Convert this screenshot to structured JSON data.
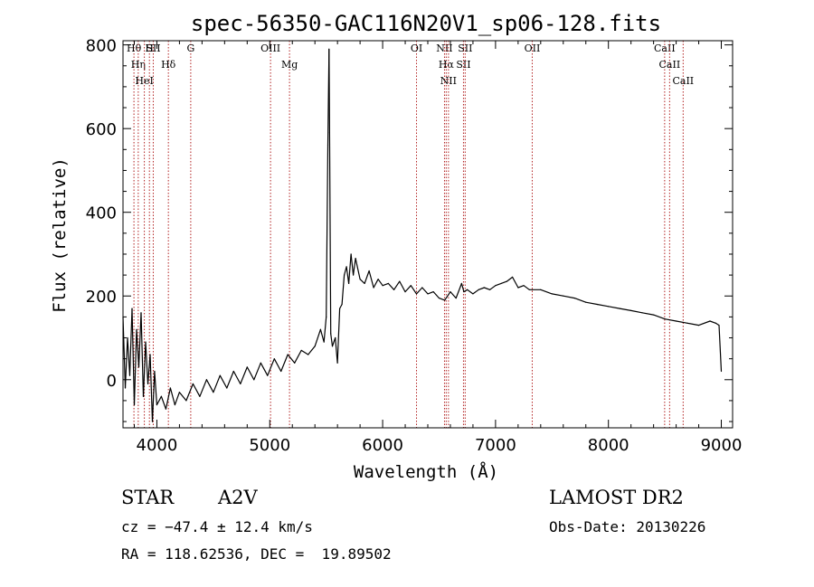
{
  "chart_data": {
    "type": "line",
    "title": "spec-56350-GAC116N20V1_sp06-128.fits",
    "xlabel": "Wavelength (Å)",
    "ylabel": "Flux (relative)",
    "xlim": [
      3700,
      9100
    ],
    "ylim": [
      -115,
      810
    ],
    "xticks": [
      4000,
      5000,
      6000,
      7000,
      8000,
      9000
    ],
    "yticks": [
      0,
      200,
      400,
      600,
      800
    ],
    "grid": false,
    "legend": "none",
    "line_color": "#000000",
    "marker_color": "#b22222",
    "series": [
      {
        "x": [
          3700,
          3720,
          3740,
          3760,
          3780,
          3800,
          3820,
          3840,
          3860,
          3880,
          3900,
          3920,
          3940,
          3960,
          3980,
          4000,
          4040,
          4080,
          4120,
          4160,
          4200,
          4260,
          4320,
          4380,
          4440,
          4500,
          4560,
          4620,
          4680,
          4740,
          4800,
          4860,
          4920,
          4980,
          5040,
          5100,
          5160,
          5220,
          5280,
          5340,
          5400,
          5450,
          5480,
          5500,
          5515,
          5525,
          5530,
          5540,
          5555,
          5580,
          5600,
          5620,
          5640,
          5660,
          5680,
          5700,
          5720,
          5740,
          5760,
          5800,
          5840,
          5880,
          5920,
          5960,
          6000,
          6050,
          6100,
          6150,
          6200,
          6250,
          6300,
          6350,
          6400,
          6450,
          6500,
          6550,
          6600,
          6650,
          6700,
          6720,
          6750,
          6800,
          6850,
          6900,
          6950,
          7000,
          7050,
          7100,
          7150,
          7200,
          7250,
          7300,
          7400,
          7500,
          7600,
          7700,
          7800,
          7900,
          8000,
          8100,
          8200,
          8300,
          8400,
          8500,
          8600,
          8700,
          8800,
          8900,
          8950,
          8980,
          9000
        ],
        "y": [
          150,
          -20,
          100,
          10,
          170,
          -60,
          120,
          30,
          160,
          -40,
          90,
          -10,
          60,
          -100,
          20,
          -60,
          -40,
          -70,
          -20,
          -60,
          -30,
          -50,
          -10,
          -40,
          0,
          -30,
          10,
          -20,
          20,
          -10,
          30,
          0,
          40,
          10,
          50,
          20,
          60,
          40,
          70,
          60,
          80,
          120,
          90,
          150,
          560,
          790,
          590,
          110,
          80,
          100,
          40,
          170,
          180,
          250,
          270,
          230,
          300,
          250,
          290,
          240,
          230,
          260,
          220,
          240,
          225,
          230,
          215,
          235,
          210,
          225,
          205,
          220,
          205,
          210,
          195,
          190,
          210,
          195,
          230,
          210,
          215,
          205,
          215,
          220,
          215,
          225,
          230,
          235,
          245,
          220,
          225,
          215,
          215,
          205,
          200,
          195,
          185,
          180,
          175,
          170,
          165,
          160,
          155,
          145,
          140,
          135,
          130,
          140,
          135,
          130,
          20
        ]
      }
    ],
    "lines": [
      {
        "x": 3797,
        "label": "Hθ"
      },
      {
        "x": 3835,
        "label": "Hη"
      },
      {
        "x": 3889,
        "label": "HeI"
      },
      {
        "x": 3934,
        "label": "H"
      },
      {
        "x": 3968,
        "label": "SII"
      },
      {
        "x": 4102,
        "label": "Hδ"
      },
      {
        "x": 4300,
        "label": "G"
      },
      {
        "x": 5007,
        "label": "OIII"
      },
      {
        "x": 5175,
        "label": "Mg"
      },
      {
        "x": 6300,
        "label": "OI"
      },
      {
        "x": 6548,
        "label": "NII"
      },
      {
        "x": 6563,
        "label": "Hα"
      },
      {
        "x": 6583,
        "label": "NII"
      },
      {
        "x": 6716,
        "label": "SII"
      },
      {
        "x": 6731,
        "label": "SII"
      },
      {
        "x": 7325,
        "label": "OII"
      },
      {
        "x": 8498,
        "label": "CaII"
      },
      {
        "x": 8542,
        "label": "CaII"
      },
      {
        "x": 8662,
        "label": "CaII"
      }
    ]
  },
  "info": {
    "object_class": "STAR",
    "subclass": "A2V",
    "survey": "LAMOST DR2",
    "cz": "cz = −47.4 ± 12.4 km/s",
    "obs_date": "Obs-Date: 20130226",
    "radec": "RA = 118.62536, DEC =  19.89502"
  }
}
